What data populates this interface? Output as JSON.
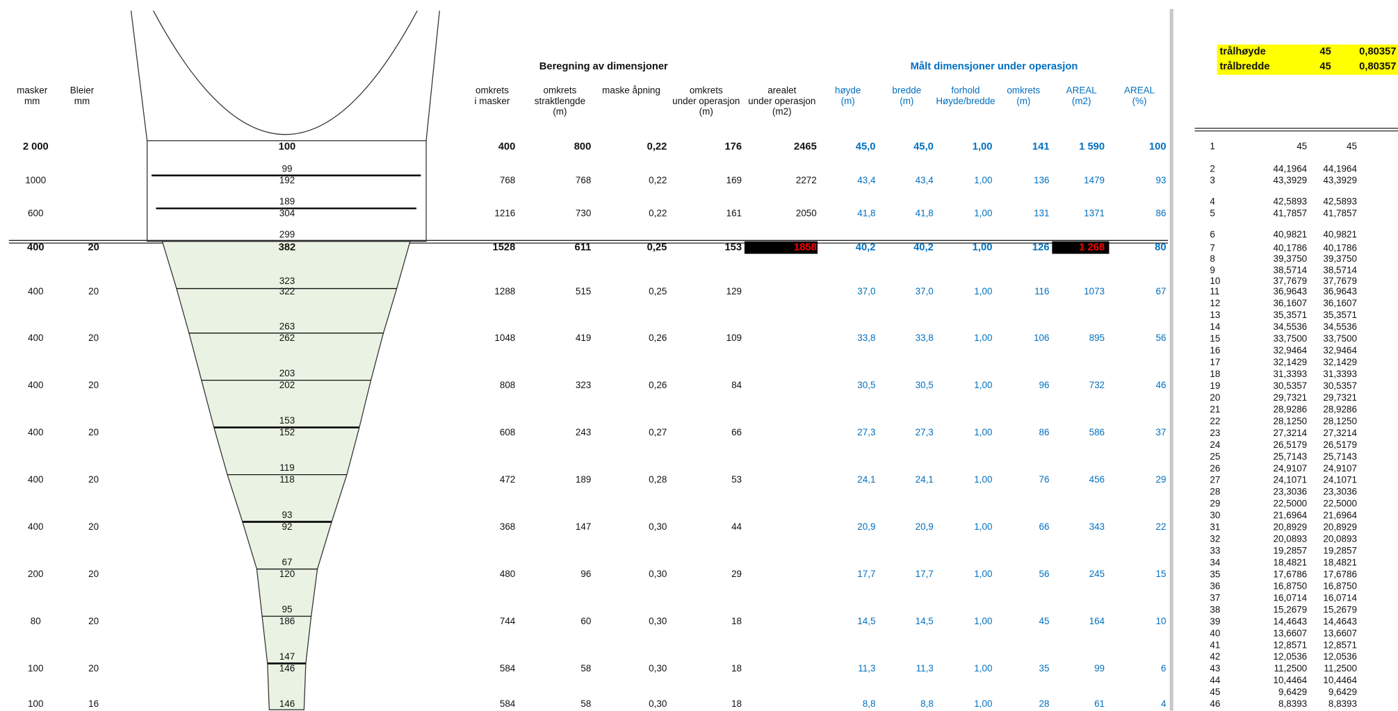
{
  "left_headers": [
    [
      "masker",
      "mm"
    ],
    [
      "Bleier",
      "mm"
    ]
  ],
  "section_titles": [
    "Beregning av dimensjoner",
    "Målt dimensjoner under operasjon"
  ],
  "column_headers": [
    [
      "omkrets",
      "i masker"
    ],
    [
      "omkrets",
      "straktlengde",
      "(m)"
    ],
    [
      "maske åpning"
    ],
    [
      "omkrets",
      "under operasjon",
      "(m)"
    ],
    [
      "arealet",
      "under operasjon",
      "(m2)"
    ],
    [
      "høyde",
      "(m)"
    ],
    [
      "bredde",
      "(m)"
    ],
    [
      "forhold",
      "Høyde/bredde"
    ],
    [
      "omkrets",
      "(m)"
    ],
    [
      "AREAL",
      "(m2)"
    ],
    [
      "AREAL",
      "(%)"
    ]
  ],
  "rows": [
    {
      "masker": "2 000",
      "bleier": null,
      "funnel_top": null,
      "funnel": "100",
      "cells": [
        "400",
        "800",
        "0,22",
        "176",
        "2465",
        "45,0",
        "45,0",
        "1,00",
        "141",
        "1 590",
        "100"
      ]
    },
    {
      "masker": "1000",
      "bleier": null,
      "funnel_top": "99",
      "funnel": "192",
      "cells": [
        "768",
        "768",
        "0,22",
        "169",
        "2272",
        "43,4",
        "43,4",
        "1,00",
        "136",
        "1479",
        "93"
      ]
    },
    {
      "masker": "600",
      "bleier": null,
      "funnel_top": "189",
      "funnel": "304",
      "cells": [
        "1216",
        "730",
        "0,22",
        "161",
        "2050",
        "41,8",
        "41,8",
        "1,00",
        "131",
        "1371",
        "86"
      ]
    },
    {
      "masker": "400",
      "bleier": "20",
      "funnel_top": "299",
      "funnel": "382",
      "cells": [
        "1528",
        "611",
        "0,25",
        "153",
        "1858",
        "40,2",
        "40,2",
        "1,00",
        "126",
        "1 268",
        "80"
      ]
    },
    {
      "masker": "400",
      "bleier": "20",
      "funnel_top": "323",
      "funnel": "322",
      "cells": [
        "1288",
        "515",
        "0,25",
        "129",
        null,
        "37,0",
        "37,0",
        "1,00",
        "116",
        "1073",
        "67"
      ]
    },
    {
      "masker": "400",
      "bleier": "20",
      "funnel_top": "263",
      "funnel": "262",
      "cells": [
        "1048",
        "419",
        "0,26",
        "109",
        null,
        "33,8",
        "33,8",
        "1,00",
        "106",
        "895",
        "56"
      ]
    },
    {
      "masker": "400",
      "bleier": "20",
      "funnel_top": "203",
      "funnel": "202",
      "cells": [
        "808",
        "323",
        "0,26",
        "84",
        null,
        "30,5",
        "30,5",
        "1,00",
        "96",
        "732",
        "46"
      ]
    },
    {
      "masker": "400",
      "bleier": "20",
      "funnel_top": "153",
      "funnel": "152",
      "cells": [
        "608",
        "243",
        "0,27",
        "66",
        null,
        "27,3",
        "27,3",
        "1,00",
        "86",
        "586",
        "37"
      ]
    },
    {
      "masker": "400",
      "bleier": "20",
      "funnel_top": "119",
      "funnel": "118",
      "cells": [
        "472",
        "189",
        "0,28",
        "53",
        null,
        "24,1",
        "24,1",
        "1,00",
        "76",
        "456",
        "29"
      ]
    },
    {
      "masker": "400",
      "bleier": "20",
      "funnel_top": "93",
      "funnel": "92",
      "cells": [
        "368",
        "147",
        "0,30",
        "44",
        null,
        "20,9",
        "20,9",
        "1,00",
        "66",
        "343",
        "22"
      ]
    },
    {
      "masker": "200",
      "bleier": "20",
      "funnel_top": "67",
      "funnel": "120",
      "cells": [
        "480",
        "96",
        "0,30",
        "29",
        null,
        "17,7",
        "17,7",
        "1,00",
        "56",
        "245",
        "15"
      ]
    },
    {
      "masker": "80",
      "bleier": "20",
      "funnel_top": "95",
      "funnel": "186",
      "cells": [
        "744",
        "60",
        "0,30",
        "18",
        null,
        "14,5",
        "14,5",
        "1,00",
        "45",
        "164",
        "10"
      ]
    },
    {
      "masker": "100",
      "bleier": "20",
      "funnel_top": "147",
      "funnel": "146",
      "cells": [
        "584",
        "58",
        "0,30",
        "18",
        null,
        "11,3",
        "11,3",
        "1,00",
        "35",
        "99",
        "6"
      ]
    },
    {
      "masker": "100",
      "bleier": "16",
      "funnel_top": null,
      "funnel": "146",
      "cells": [
        "584",
        "58",
        "0,30",
        "18",
        null,
        "8,8",
        "8,8",
        "1,00",
        "28",
        "61",
        "4"
      ]
    }
  ],
  "summary": [
    [
      "trålhøyde",
      "45",
      "0,80357"
    ],
    [
      "trålbredde",
      "45",
      "0,80357"
    ]
  ],
  "side_table": [
    [
      "1",
      "45",
      "45"
    ],
    [
      "2",
      "44,1964",
      "44,1964"
    ],
    [
      "3",
      "43,3929",
      "43,3929"
    ],
    [
      "4",
      "42,5893",
      "42,5893"
    ],
    [
      "5",
      "41,7857",
      "41,7857"
    ],
    [
      "6",
      "40,9821",
      "40,9821"
    ],
    [
      "7",
      "40,1786",
      "40,1786"
    ],
    [
      "8",
      "39,3750",
      "39,3750"
    ],
    [
      "9",
      "38,5714",
      "38,5714"
    ],
    [
      "10",
      "37,7679",
      "37,7679"
    ],
    [
      "11",
      "36,9643",
      "36,9643"
    ],
    [
      "12",
      "36,1607",
      "36,1607"
    ],
    [
      "13",
      "35,3571",
      "35,3571"
    ],
    [
      "14",
      "34,5536",
      "34,5536"
    ],
    [
      "15",
      "33,7500",
      "33,7500"
    ],
    [
      "16",
      "32,9464",
      "32,9464"
    ],
    [
      "17",
      "32,1429",
      "32,1429"
    ],
    [
      "18",
      "31,3393",
      "31,3393"
    ],
    [
      "19",
      "30,5357",
      "30,5357"
    ],
    [
      "20",
      "29,7321",
      "29,7321"
    ],
    [
      "21",
      "28,9286",
      "28,9286"
    ],
    [
      "22",
      "28,1250",
      "28,1250"
    ],
    [
      "23",
      "27,3214",
      "27,3214"
    ],
    [
      "24",
      "26,5179",
      "26,5179"
    ],
    [
      "25",
      "25,7143",
      "25,7143"
    ],
    [
      "26",
      "24,9107",
      "24,9107"
    ],
    [
      "27",
      "24,1071",
      "24,1071"
    ],
    [
      "28",
      "23,3036",
      "23,3036"
    ],
    [
      "29",
      "22,5000",
      "22,5000"
    ],
    [
      "30",
      "21,6964",
      "21,6964"
    ],
    [
      "31",
      "20,8929",
      "20,8929"
    ],
    [
      "32",
      "20,0893",
      "20,0893"
    ],
    [
      "33",
      "19,2857",
      "19,2857"
    ],
    [
      "34",
      "18,4821",
      "18,4821"
    ],
    [
      "35",
      "17,6786",
      "17,6786"
    ],
    [
      "36",
      "16,8750",
      "16,8750"
    ],
    [
      "37",
      "16,0714",
      "16,0714"
    ],
    [
      "38",
      "15,2679",
      "15,2679"
    ],
    [
      "39",
      "14,4643",
      "14,4643"
    ],
    [
      "40",
      "13,6607",
      "13,6607"
    ],
    [
      "41",
      "12,8571",
      "12,8571"
    ],
    [
      "42",
      "12,0536",
      "12,0536"
    ],
    [
      "43",
      "11,2500",
      "11,2500"
    ],
    [
      "44",
      "10,4464",
      "10,4464"
    ],
    [
      "45",
      "9,6429",
      "9,6429"
    ],
    [
      "46",
      "8,8393",
      "8,8393"
    ]
  ]
}
